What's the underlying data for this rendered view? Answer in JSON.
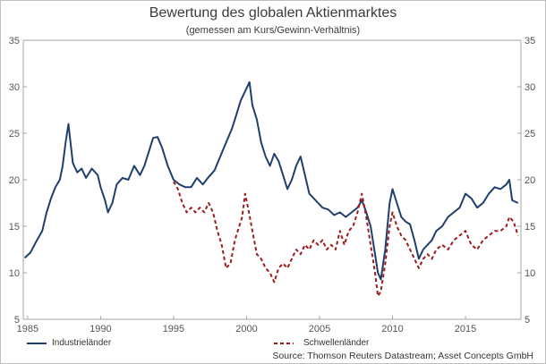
{
  "chart_data": {
    "type": "line",
    "title": "Bewertung des globalen Aktienmarktes",
    "subtitle": "(gemessen am Kurs/Gewinn-Verhältnis)",
    "source": "Source: Thomson Reuters Datastream; Asset Concepts GmbH",
    "xlim": [
      1984.7,
      2018.8
    ],
    "ylim": [
      5,
      35
    ],
    "x_ticks": [
      1985,
      1990,
      1995,
      2000,
      2005,
      2010,
      2015
    ],
    "y_ticks": [
      5,
      10,
      15,
      20,
      25,
      30,
      35
    ],
    "grid": false,
    "legend": "bottom",
    "series": [
      {
        "name": "Industrieländer",
        "color": "#1f3f6e",
        "style": "solid",
        "points": [
          [
            1984.8,
            11.6
          ],
          [
            1985.2,
            12.2
          ],
          [
            1985.6,
            13.4
          ],
          [
            1986.0,
            14.5
          ],
          [
            1986.3,
            16.5
          ],
          [
            1986.6,
            18.0
          ],
          [
            1986.9,
            19.2
          ],
          [
            1987.2,
            20.0
          ],
          [
            1987.4,
            21.5
          ],
          [
            1987.6,
            24.0
          ],
          [
            1987.8,
            26.0
          ],
          [
            1987.9,
            24.5
          ],
          [
            1988.1,
            21.8
          ],
          [
            1988.4,
            20.8
          ],
          [
            1988.7,
            21.2
          ],
          [
            1989.0,
            20.2
          ],
          [
            1989.4,
            21.2
          ],
          [
            1989.8,
            20.5
          ],
          [
            1990.0,
            19.2
          ],
          [
            1990.3,
            17.8
          ],
          [
            1990.5,
            16.5
          ],
          [
            1990.8,
            17.5
          ],
          [
            1991.1,
            19.5
          ],
          [
            1991.5,
            20.2
          ],
          [
            1991.9,
            20.0
          ],
          [
            1992.3,
            21.5
          ],
          [
            1992.7,
            20.5
          ],
          [
            1993.0,
            21.5
          ],
          [
            1993.3,
            23.0
          ],
          [
            1993.6,
            24.5
          ],
          [
            1993.9,
            24.6
          ],
          [
            1994.2,
            23.5
          ],
          [
            1994.6,
            21.5
          ],
          [
            1995.0,
            20.0
          ],
          [
            1995.4,
            19.5
          ],
          [
            1995.8,
            19.2
          ],
          [
            1996.2,
            19.2
          ],
          [
            1996.6,
            20.2
          ],
          [
            1997.0,
            19.5
          ],
          [
            1997.4,
            20.3
          ],
          [
            1997.8,
            21.0
          ],
          [
            1998.2,
            22.5
          ],
          [
            1998.6,
            24.0
          ],
          [
            1999.0,
            25.5
          ],
          [
            1999.3,
            27.0
          ],
          [
            1999.6,
            28.5
          ],
          [
            1999.9,
            29.5
          ],
          [
            2000.2,
            30.5
          ],
          [
            2000.4,
            28.0
          ],
          [
            2000.7,
            26.5
          ],
          [
            2001.0,
            24.0
          ],
          [
            2001.3,
            22.5
          ],
          [
            2001.6,
            21.5
          ],
          [
            2001.9,
            22.8
          ],
          [
            2002.2,
            22.0
          ],
          [
            2002.5,
            20.5
          ],
          [
            2002.8,
            19.0
          ],
          [
            2003.1,
            20.0
          ],
          [
            2003.4,
            21.5
          ],
          [
            2003.7,
            22.5
          ],
          [
            2004.0,
            20.5
          ],
          [
            2004.3,
            18.5
          ],
          [
            2004.6,
            18.0
          ],
          [
            2004.9,
            17.5
          ],
          [
            2005.2,
            17.0
          ],
          [
            2005.6,
            16.8
          ],
          [
            2006.0,
            16.2
          ],
          [
            2006.4,
            16.5
          ],
          [
            2006.8,
            16.0
          ],
          [
            2007.2,
            16.5
          ],
          [
            2007.6,
            17.0
          ],
          [
            2007.9,
            17.8
          ],
          [
            2008.2,
            16.5
          ],
          [
            2008.5,
            15.0
          ],
          [
            2008.8,
            12.0
          ],
          [
            2009.0,
            10.0
          ],
          [
            2009.2,
            9.3
          ],
          [
            2009.5,
            12.5
          ],
          [
            2009.8,
            17.5
          ],
          [
            2010.0,
            19.0
          ],
          [
            2010.3,
            17.5
          ],
          [
            2010.6,
            16.0
          ],
          [
            2010.9,
            15.5
          ],
          [
            2011.2,
            15.2
          ],
          [
            2011.5,
            13.5
          ],
          [
            2011.8,
            11.5
          ],
          [
            2012.1,
            12.5
          ],
          [
            2012.4,
            13.0
          ],
          [
            2012.7,
            13.5
          ],
          [
            2013.0,
            14.5
          ],
          [
            2013.4,
            15.0
          ],
          [
            2013.8,
            16.0
          ],
          [
            2014.2,
            16.5
          ],
          [
            2014.6,
            17.0
          ],
          [
            2015.0,
            18.5
          ],
          [
            2015.4,
            18.0
          ],
          [
            2015.8,
            17.0
          ],
          [
            2016.2,
            17.5
          ],
          [
            2016.6,
            18.5
          ],
          [
            2017.0,
            19.2
          ],
          [
            2017.4,
            19.0
          ],
          [
            2017.8,
            19.5
          ],
          [
            2018.0,
            20.0
          ],
          [
            2018.2,
            17.8
          ],
          [
            2018.6,
            17.5
          ]
        ]
      },
      {
        "name": "Schwellenländer",
        "color": "#9b1c1c",
        "style": "dashed",
        "points": [
          [
            1995.0,
            19.8
          ],
          [
            1995.3,
            19.0
          ],
          [
            1995.6,
            17.5
          ],
          [
            1995.9,
            16.5
          ],
          [
            1996.2,
            17.0
          ],
          [
            1996.5,
            16.5
          ],
          [
            1996.8,
            17.0
          ],
          [
            1997.1,
            16.5
          ],
          [
            1997.4,
            17.5
          ],
          [
            1997.7,
            16.5
          ],
          [
            1998.0,
            14.5
          ],
          [
            1998.3,
            13.0
          ],
          [
            1998.6,
            10.5
          ],
          [
            1998.9,
            11.0
          ],
          [
            1999.2,
            13.5
          ],
          [
            1999.5,
            15.0
          ],
          [
            1999.7,
            16.0
          ],
          [
            1999.9,
            18.5
          ],
          [
            2000.1,
            17.0
          ],
          [
            2000.4,
            14.5
          ],
          [
            2000.7,
            12.0
          ],
          [
            2001.0,
            11.5
          ],
          [
            2001.3,
            10.5
          ],
          [
            2001.6,
            10.0
          ],
          [
            2001.9,
            9.0
          ],
          [
            2002.2,
            10.5
          ],
          [
            2002.5,
            11.0
          ],
          [
            2002.8,
            10.5
          ],
          [
            2003.1,
            11.5
          ],
          [
            2003.4,
            12.5
          ],
          [
            2003.7,
            12.0
          ],
          [
            2004.0,
            13.0
          ],
          [
            2004.3,
            12.5
          ],
          [
            2004.6,
            13.5
          ],
          [
            2004.9,
            13.0
          ],
          [
            2005.2,
            13.5
          ],
          [
            2005.5,
            12.5
          ],
          [
            2005.8,
            13.0
          ],
          [
            2006.1,
            12.5
          ],
          [
            2006.4,
            14.5
          ],
          [
            2006.7,
            13.0
          ],
          [
            2007.0,
            14.5
          ],
          [
            2007.3,
            15.0
          ],
          [
            2007.6,
            16.5
          ],
          [
            2007.9,
            18.5
          ],
          [
            2008.2,
            16.0
          ],
          [
            2008.5,
            13.0
          ],
          [
            2008.8,
            10.0
          ],
          [
            2009.0,
            7.5
          ],
          [
            2009.2,
            8.0
          ],
          [
            2009.5,
            11.0
          ],
          [
            2009.8,
            15.0
          ],
          [
            2010.0,
            16.5
          ],
          [
            2010.3,
            15.0
          ],
          [
            2010.6,
            14.0
          ],
          [
            2010.9,
            13.5
          ],
          [
            2011.2,
            12.5
          ],
          [
            2011.5,
            11.5
          ],
          [
            2011.8,
            10.5
          ],
          [
            2012.1,
            11.5
          ],
          [
            2012.4,
            12.0
          ],
          [
            2012.7,
            11.5
          ],
          [
            2013.0,
            12.5
          ],
          [
            2013.4,
            13.0
          ],
          [
            2013.8,
            12.5
          ],
          [
            2014.2,
            13.5
          ],
          [
            2014.6,
            14.0
          ],
          [
            2015.0,
            14.5
          ],
          [
            2015.4,
            13.0
          ],
          [
            2015.8,
            12.5
          ],
          [
            2016.2,
            13.5
          ],
          [
            2016.6,
            14.0
          ],
          [
            2017.0,
            14.5
          ],
          [
            2017.4,
            14.5
          ],
          [
            2017.8,
            15.0
          ],
          [
            2018.0,
            16.0
          ],
          [
            2018.3,
            15.5
          ],
          [
            2018.6,
            14.0
          ]
        ]
      }
    ]
  }
}
